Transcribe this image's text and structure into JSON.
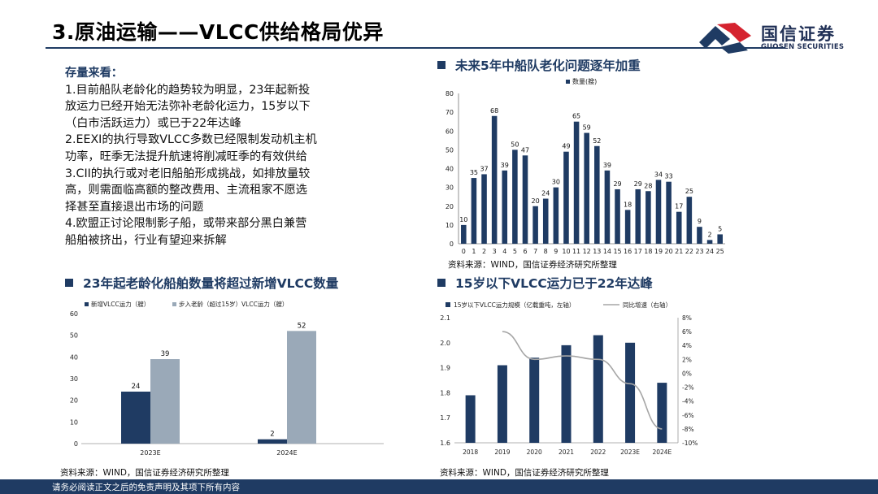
{
  "header": {
    "title": "3.原油运输——VLCC供给格局优异",
    "logo_name": "国信证券",
    "logo_sub": "GUOSEN SECURITIES"
  },
  "left_text": {
    "heading": "存量来看：",
    "lines": [
      "1.目前船队老龄化的趋势较为明显，23年起新投",
      "放运力已经开始无法弥补老龄化运力，15岁以下",
      "（白市活跃运力）或已于22年达峰",
      "2.EEXI的执行导致VLCC多数已经限制发动机主机",
      "功率，旺季无法提升航速将削减旺季的有效供给",
      "3.CII的执行或对老旧船舶形成挑战，如排放量较",
      "高，则需面临高额的整改费用、主流租家不愿选",
      "择甚至直接退出市场的问题",
      "4.欧盟正讨论限制影子船，或带来部分黑白兼营",
      "船舶被挤出，行业有望迎来拆解"
    ]
  },
  "sections": {
    "top_right_title": "未来5年中船队老化问题逐年加重",
    "bottom_left_title": "23年起老龄化船舶数量将超过新增VLCC数量",
    "bottom_right_title": "15岁以下VLCC运力已于22年达峰"
  },
  "sources": {
    "top_right": "资料来源：WIND，国信证券经济研究所整理",
    "bottom_left": "资料来源：WIND，国信证券经济研究所整理",
    "bottom_right": "资料来源：WIND，国信证券经济研究所整理"
  },
  "footer": {
    "disclaimer": "请务必阅读正文之后的免责声明及其项下所有内容"
  },
  "colors": {
    "navy": "#1f3b63",
    "gray_blue": "#9aa9b8",
    "line_gray": "#a6a6a6"
  },
  "chart_data": [
    {
      "type": "bar",
      "title": "未来5年中船队老化问题逐年加重",
      "legend": [
        "数量(艘)"
      ],
      "categories": [
        "0",
        "1",
        "2",
        "3",
        "4",
        "5",
        "6",
        "7",
        "8",
        "9",
        "10",
        "11",
        "12",
        "13",
        "14",
        "15",
        "16",
        "17",
        "18",
        "19",
        "20",
        "21",
        "22",
        "23",
        "24",
        "25"
      ],
      "values": [
        10,
        35,
        37,
        68,
        39,
        50,
        47,
        20,
        24,
        30,
        49,
        65,
        59,
        52,
        39,
        29,
        18,
        29,
        28,
        34,
        33,
        17,
        25,
        9,
        2,
        5
      ],
      "ylim": [
        0,
        80
      ],
      "yticks": [
        0,
        10,
        20,
        30,
        40,
        50,
        60,
        70,
        80
      ]
    },
    {
      "type": "bar",
      "title": "23年起老龄化船舶数量将超过新增VLCC数量",
      "categories": [
        "2023E",
        "2024E"
      ],
      "series": [
        {
          "name": "新增VLCC运力（艘）",
          "values": [
            24,
            2
          ]
        },
        {
          "name": "步入老龄（超过15岁）VLCC运力（艘）",
          "values": [
            39,
            52
          ]
        }
      ],
      "ylim": [
        0,
        60
      ],
      "yticks": [
        0,
        10,
        20,
        30,
        40,
        50,
        60
      ]
    },
    {
      "type": "bar",
      "title": "15岁以下VLCC运力已于22年达峰",
      "categories": [
        "2018",
        "2019",
        "2020",
        "2021",
        "2022",
        "2023E",
        "2024E"
      ],
      "series": [
        {
          "name": "15岁以下VLCC运力规模（亿载重吨，左轴）",
          "type": "bar",
          "values": [
            1.79,
            1.91,
            1.94,
            1.99,
            2.03,
            2.0,
            1.84
          ]
        },
        {
          "name": "同比增速（右轴）",
          "type": "line",
          "axis": "right",
          "values": [
            null,
            6.0,
            2.0,
            2.5,
            2.0,
            -1.5,
            -8.0
          ]
        }
      ],
      "ylim": [
        1.6,
        2.1
      ],
      "yticks": [
        "1.6",
        "1.7",
        "1.8",
        "1.9",
        "2.0",
        "2.1"
      ],
      "y2lim": [
        -10,
        8
      ],
      "y2ticks": [
        "-10%",
        "-8%",
        "-6%",
        "-4%",
        "-2%",
        "0%",
        "2%",
        "4%",
        "6%",
        "8%"
      ]
    }
  ]
}
